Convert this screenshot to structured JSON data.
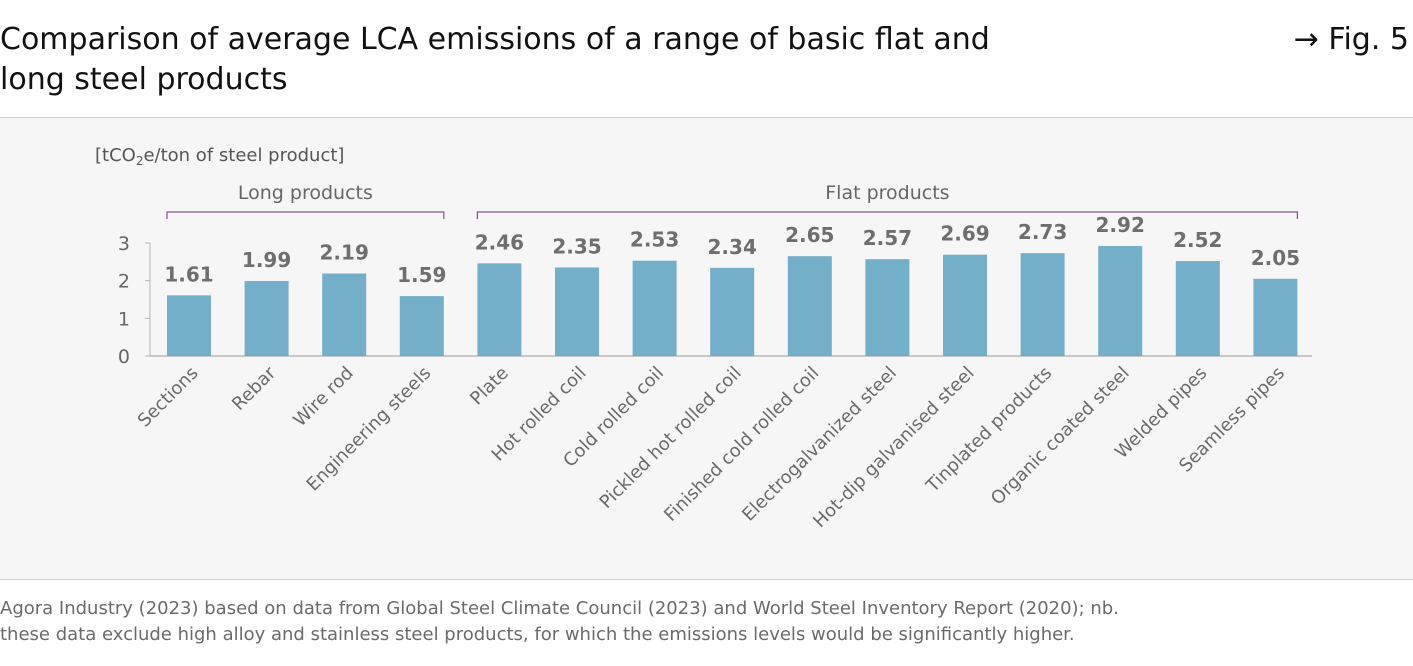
{
  "header": {
    "title": "Comparison of average LCA emissions of a range of basic flat and long steel products",
    "fig_ref": "→ Fig. 5"
  },
  "source": {
    "line1": "Agora Industry (2023) based on data from Global Steel Climate Council (2023) and World Steel Inventory Report (2020); nb.",
    "line2": "these data exclude high alloy and stainless steel products, for which the emissions levels would be significantly higher."
  },
  "chart_data": {
    "type": "bar",
    "ylabel_prefix": "[tCO",
    "ylabel_sub": "2",
    "ylabel_suffix": "e/ton of steel product]",
    "ylim": [
      0,
      3
    ],
    "yticks": [
      "0",
      "1",
      "2",
      "3"
    ],
    "grid": false,
    "bar_color": "#73afc8",
    "groups": [
      {
        "label": "Long products",
        "from": 0,
        "to": 3
      },
      {
        "label": "Flat products",
        "from": 4,
        "to": 14
      }
    ],
    "categories": [
      "Sections",
      "Rebar",
      "Wire rod",
      "Engineering steels",
      "Plate",
      "Hot rolled coil",
      "Cold rolled coil",
      "Pickled hot rolled coil",
      "Finished cold rolled coil",
      "Electrogalvanized steel",
      "Hot-dip galvanised steel",
      "Tinplated products",
      "Organic coated steel",
      "Welded pipes",
      "Seamless pipes"
    ],
    "values": [
      1.61,
      1.99,
      2.19,
      1.59,
      2.46,
      2.35,
      2.53,
      2.34,
      2.65,
      2.57,
      2.69,
      2.73,
      2.92,
      2.52,
      2.05
    ],
    "value_labels": [
      "1.61",
      "1.99",
      "2.19",
      "1.59",
      "2.46",
      "2.35",
      "2.53",
      "2.34",
      "2.65",
      "2.57",
      "2.69",
      "2.73",
      "2.92",
      "2.52",
      "2.05"
    ]
  }
}
